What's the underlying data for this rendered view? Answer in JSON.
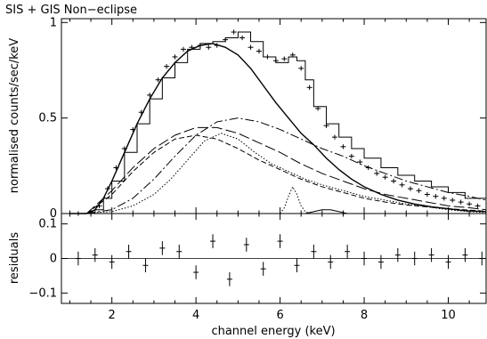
{
  "chart_data": {
    "type": "line",
    "title": "SIS + GIS Non−eclipse",
    "xlabel": "channel energy (keV)",
    "xlim": [
      0.8,
      10.9
    ],
    "x_ticks": [
      "2",
      "4",
      "6",
      "8",
      "10"
    ],
    "x_tick_values": [
      2,
      4,
      6,
      8,
      10
    ],
    "grid": false,
    "panels": [
      {
        "name": "spectrum",
        "ylabel": "normalised counts/sec/keV",
        "ylim": [
          0,
          1.02
        ],
        "y_ticks": [
          "0",
          "0.5",
          "1"
        ],
        "y_tick_values": [
          0,
          0.5,
          1
        ],
        "series": [
          {
            "style": "crosses",
            "x": [
              1.2,
              1.5,
              1.7,
              1.9,
              2.1,
              2.3,
              2.5,
              2.7,
              2.9,
              3.1,
              3.3,
              3.5,
              3.7,
              3.9,
              4.1,
              4.3,
              4.5,
              4.7,
              4.9,
              5.1,
              5.3,
              5.5,
              5.7,
              5.9,
              6.1,
              6.3,
              6.5,
              6.7,
              6.9,
              7.1,
              7.3,
              7.5,
              7.7,
              7.9,
              8.1,
              8.3,
              8.5,
              8.7,
              8.9,
              9.1,
              9.3,
              9.5,
              9.7,
              9.9,
              10.1,
              10.3,
              10.5,
              10.7
            ],
            "y": [
              0.0,
              0.01,
              0.04,
              0.13,
              0.24,
              0.34,
              0.44,
              0.53,
              0.62,
              0.7,
              0.77,
              0.82,
              0.86,
              0.87,
              0.88,
              0.87,
              0.88,
              0.91,
              0.95,
              0.92,
              0.87,
              0.85,
              0.82,
              0.8,
              0.81,
              0.83,
              0.76,
              0.66,
              0.55,
              0.46,
              0.4,
              0.35,
              0.3,
              0.27,
              0.24,
              0.21,
              0.19,
              0.17,
              0.15,
              0.13,
              0.12,
              0.1,
              0.09,
              0.08,
              0.07,
              0.06,
              0.05,
              0.04
            ]
          },
          {
            "style": "solid-model",
            "x": [
              1.0,
              1.4,
              1.6,
              1.8,
              2.0,
              2.3,
              2.6,
              2.9,
              3.2,
              3.5,
              3.8,
              4.1,
              4.4,
              4.7,
              5.0,
              5.3,
              5.6,
              5.9,
              6.2,
              6.5,
              6.8,
              7.1,
              7.4,
              7.7,
              8.0,
              8.4,
              8.8,
              9.2,
              9.6,
              10.0,
              10.4,
              10.9
            ],
            "y": [
              0.0,
              0.0,
              0.02,
              0.08,
              0.17,
              0.32,
              0.47,
              0.6,
              0.71,
              0.79,
              0.85,
              0.88,
              0.89,
              0.87,
              0.83,
              0.76,
              0.67,
              0.58,
              0.5,
              0.42,
              0.36,
              0.29,
              0.23,
              0.18,
              0.14,
              0.1,
              0.07,
              0.05,
              0.035,
              0.025,
              0.015,
              0.01
            ]
          },
          {
            "style": "histogram-model",
            "x": [
              1.0,
              1.4,
              1.6,
              1.8,
              2.0,
              2.3,
              2.6,
              2.9,
              3.2,
              3.5,
              3.8,
              4.1,
              4.4,
              4.7,
              5.0,
              5.3,
              5.6,
              5.9,
              6.2,
              6.4,
              6.6,
              6.8,
              7.1,
              7.4,
              7.7,
              8.0,
              8.4,
              8.8,
              9.2,
              9.6,
              10.0,
              10.4,
              10.9
            ],
            "y": [
              0.0,
              0.0,
              0.02,
              0.08,
              0.17,
              0.32,
              0.47,
              0.6,
              0.71,
              0.79,
              0.86,
              0.89,
              0.9,
              0.92,
              0.95,
              0.9,
              0.82,
              0.79,
              0.82,
              0.8,
              0.7,
              0.56,
              0.47,
              0.4,
              0.34,
              0.29,
              0.24,
              0.2,
              0.17,
              0.14,
              0.11,
              0.08,
              0.05
            ]
          },
          {
            "style": "dash-dot",
            "x": [
              1.4,
              2.0,
              2.5,
              3.0,
              3.5,
              4.0,
              4.5,
              5.0,
              5.5,
              6.0,
              6.5,
              7.0,
              7.5,
              8.0,
              8.5,
              9.0,
              9.5,
              10.0,
              10.5,
              10.9
            ],
            "y": [
              0.0,
              0.02,
              0.08,
              0.18,
              0.3,
              0.41,
              0.48,
              0.5,
              0.48,
              0.44,
              0.39,
              0.34,
              0.3,
              0.25,
              0.21,
              0.17,
              0.14,
              0.11,
              0.09,
              0.07
            ]
          },
          {
            "style": "long-dash",
            "x": [
              1.4,
              2.0,
              2.5,
              3.0,
              3.5,
              4.0,
              4.5,
              5.0,
              5.5,
              6.0,
              6.5,
              7.0,
              7.5,
              8.0,
              8.5,
              9.0,
              9.5,
              10.0,
              10.5,
              10.9
            ],
            "y": [
              0.0,
              0.12,
              0.24,
              0.34,
              0.41,
              0.45,
              0.45,
              0.42,
              0.37,
              0.32,
              0.26,
              0.21,
              0.17,
              0.13,
              0.1,
              0.08,
              0.06,
              0.04,
              0.03,
              0.02
            ]
          },
          {
            "style": "medium-dash",
            "x": [
              1.4,
              2.0,
              2.5,
              3.0,
              3.5,
              4.0,
              4.5,
              5.0,
              5.5,
              6.0,
              6.5,
              7.0,
              7.5,
              8.0,
              8.5,
              9.0,
              9.5,
              10.0,
              10.5,
              10.9
            ],
            "y": [
              0.0,
              0.1,
              0.22,
              0.32,
              0.39,
              0.41,
              0.39,
              0.34,
              0.28,
              0.23,
              0.18,
              0.14,
              0.11,
              0.08,
              0.06,
              0.045,
              0.035,
              0.025,
              0.018,
              0.012
            ]
          },
          {
            "style": "dotted",
            "x": [
              1.2,
              2.0,
              2.5,
              3.0,
              3.4,
              3.8,
              4.2,
              4.6,
              5.0,
              5.4,
              5.8,
              6.2,
              6.6,
              7.0,
              7.5,
              8.0,
              8.5,
              9.0,
              9.5,
              10.0,
              10.5,
              10.9
            ],
            "y": [
              0.0,
              0.01,
              0.04,
              0.1,
              0.18,
              0.28,
              0.38,
              0.42,
              0.39,
              0.32,
              0.26,
              0.22,
              0.18,
              0.15,
              0.12,
              0.09,
              0.07,
              0.05,
              0.035,
              0.02,
              0.01,
              0.005
            ]
          },
          {
            "style": "dotted",
            "x": [
              6.0,
              6.1,
              6.2,
              6.3,
              6.4,
              6.5,
              6.6,
              6.7
            ],
            "y": [
              0.0,
              0.03,
              0.09,
              0.14,
              0.1,
              0.04,
              0.01,
              0.0
            ]
          },
          {
            "style": "solid-thin",
            "x": [
              6.6,
              6.8,
              7.0,
              7.2,
              7.4,
              7.6
            ],
            "y": [
              0.0,
              0.01,
              0.02,
              0.02,
              0.01,
              0.0
            ]
          }
        ]
      },
      {
        "name": "residuals",
        "ylabel": "residuals",
        "ylim": [
          -0.13,
          0.13
        ],
        "y_ticks": [
          "−0.1",
          "0",
          "0.1"
        ],
        "y_tick_values": [
          -0.1,
          0,
          0.1
        ],
        "series": [
          {
            "style": "crosses",
            "x": [
              1.2,
              1.6,
              2.0,
              2.4,
              2.8,
              3.2,
              3.6,
              4.0,
              4.4,
              4.8,
              5.2,
              5.6,
              6.0,
              6.4,
              6.8,
              7.2,
              7.6,
              8.0,
              8.4,
              8.8,
              9.2,
              9.6,
              10.0,
              10.4,
              10.8
            ],
            "y": [
              0.0,
              0.01,
              -0.01,
              0.02,
              -0.02,
              0.03,
              0.02,
              -0.04,
              0.05,
              -0.06,
              0.04,
              -0.03,
              0.05,
              -0.02,
              0.02,
              -0.01,
              0.02,
              0.0,
              -0.01,
              0.01,
              0.0,
              0.01,
              -0.01,
              0.01,
              0.0
            ]
          }
        ]
      }
    ]
  }
}
